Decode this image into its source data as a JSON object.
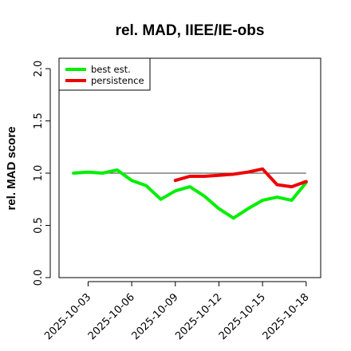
{
  "chart_data": {
    "type": "line",
    "title": "rel. MAD, IIEE/IE-obs",
    "xlabel": "",
    "ylabel": "rel. MAD score",
    "xlim": [
      "2025-10-01",
      "2025-10-19"
    ],
    "ylim": [
      0,
      2.1
    ],
    "y_ticks": [
      "0.0",
      "0.5",
      "1.0",
      "1.5",
      "2.0"
    ],
    "x_ticks": [
      "2025-10-03",
      "2025-10-06",
      "2025-10-09",
      "2025-10-12",
      "2025-10-15",
      "2025-10-18"
    ],
    "reference_line": 1.0,
    "legend_position": "top-left",
    "grid": false,
    "series": [
      {
        "name": "best est.",
        "color": "#00ee00",
        "x": [
          "2025-10-02",
          "2025-10-03",
          "2025-10-04",
          "2025-10-05",
          "2025-10-06",
          "2025-10-07",
          "2025-10-08",
          "2025-10-09",
          "2025-10-10",
          "2025-10-11",
          "2025-10-12",
          "2025-10-13",
          "2025-10-14",
          "2025-10-15",
          "2025-10-16",
          "2025-10-17",
          "2025-10-18"
        ],
        "values": [
          1.0,
          1.01,
          1.0,
          1.03,
          0.93,
          0.88,
          0.75,
          0.83,
          0.87,
          0.78,
          0.66,
          0.57,
          0.66,
          0.74,
          0.77,
          0.74,
          0.91
        ]
      },
      {
        "name": "persistence",
        "color": "#ee0000",
        "x": [
          "2025-10-09",
          "2025-10-10",
          "2025-10-11",
          "2025-10-12",
          "2025-10-13",
          "2025-10-14",
          "2025-10-15",
          "2025-10-16",
          "2025-10-17",
          "2025-10-18"
        ],
        "values": [
          0.93,
          0.97,
          0.97,
          0.98,
          0.99,
          1.01,
          1.04,
          0.89,
          0.87,
          0.92
        ]
      }
    ]
  }
}
